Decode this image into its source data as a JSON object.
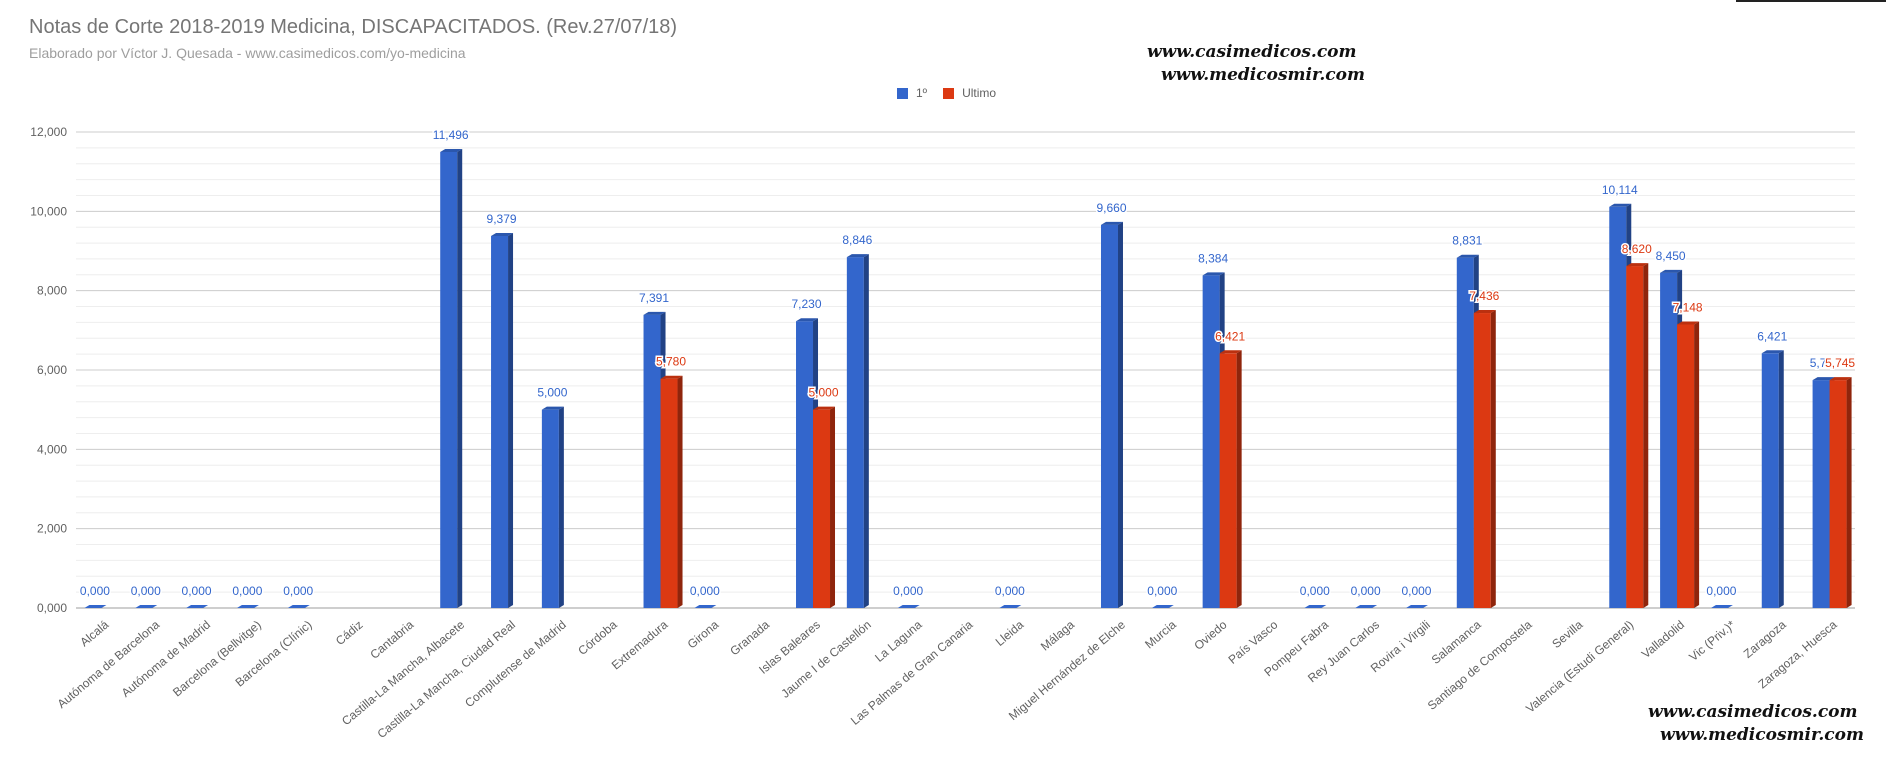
{
  "chart_data": {
    "type": "bar",
    "title": "Notas de Corte 2018-2019 Medicina, DISCAPACITADOS. (Rev.27/07/18)",
    "subtitle": "Elaborado por Víctor J. Quesada - www.casimedicos.com/yo-medicina",
    "xlabel": "",
    "ylabel": "",
    "ylim": [
      0,
      12000
    ],
    "yticks": [
      "0,000",
      "2,000",
      "4,000",
      "6,000",
      "8,000",
      "10,000",
      "12,000"
    ],
    "grid": true,
    "legend_position": "top",
    "categories": [
      "Alcalá",
      "Autónoma de Barcelona",
      "Autónoma de Madrid",
      "Barcelona (Bellvitge)",
      "Barcelona (Clínic)",
      "Cádiz",
      "Cantabria",
      "Castilla-La Mancha, Albacete",
      "Castilla-La Mancha, Ciudad Real",
      "Complutense de Madrid",
      "Córdoba",
      "Extremadura",
      "Girona",
      "Granada",
      "Islas Baleares",
      "Jaume I de Castellón",
      "La Laguna",
      "Las Palmas de Gran Canaria",
      "Lleida",
      "Málaga",
      "Miguel Hernández de Elche",
      "Murcia",
      "Oviedo",
      "País Vasco",
      "Pompeu Fabra",
      "Rey Juan Carlos",
      "Rovira i Virgili",
      "Salamanca",
      "Santiago de Compostela",
      "Sevilla",
      "Valencia (Estudi General)",
      "Valladolid",
      "Vic (Priv.)*",
      "Zaragoza",
      "Zaragoza, Huesca"
    ],
    "series": [
      {
        "name": "1º",
        "color": "#3366cc",
        "values": [
          0,
          0,
          0,
          0,
          0,
          null,
          null,
          11496,
          9379,
          5000,
          null,
          7391,
          0,
          null,
          7230,
          8846,
          0,
          null,
          0,
          null,
          9660,
          0,
          8384,
          null,
          0,
          0,
          0,
          8831,
          null,
          null,
          10114,
          8450,
          0,
          6421,
          5745
        ],
        "labels": [
          "0,000",
          "0,000",
          "0,000",
          "0,000",
          "0,000",
          null,
          null,
          "11,496",
          "9,379",
          "5,000",
          null,
          "7,391",
          "0,000",
          null,
          "7,230",
          "8,846",
          "0,000",
          null,
          "0,000",
          null,
          "9,660",
          "0,000",
          "8,384",
          null,
          "0,000",
          "0,000",
          "0,000",
          "8,831",
          null,
          null,
          "10,114",
          "8,450",
          "0,000",
          "6,421",
          "5,7..."
        ]
      },
      {
        "name": "Ultimo",
        "color": "#dc3912",
        "values": [
          null,
          null,
          null,
          null,
          null,
          null,
          null,
          null,
          null,
          null,
          null,
          5780,
          null,
          null,
          5000,
          null,
          null,
          null,
          null,
          null,
          null,
          null,
          6421,
          null,
          null,
          null,
          null,
          7436,
          null,
          null,
          8620,
          7148,
          null,
          null,
          5745
        ],
        "labels": [
          null,
          null,
          null,
          null,
          null,
          null,
          null,
          null,
          null,
          null,
          null,
          "5,780",
          null,
          null,
          "5,000",
          null,
          null,
          null,
          null,
          null,
          null,
          null,
          "6,421",
          null,
          null,
          null,
          null,
          "7,436",
          null,
          null,
          "8,620",
          "7,148",
          null,
          null,
          "5,745"
        ]
      }
    ]
  },
  "watermarks": {
    "top_line1": "www.casimedicos.com",
    "top_line2": "www.medicosmir.com",
    "bottom_line1": "www.casimedicos.com",
    "bottom_line2": "www.medicosmir.com"
  }
}
